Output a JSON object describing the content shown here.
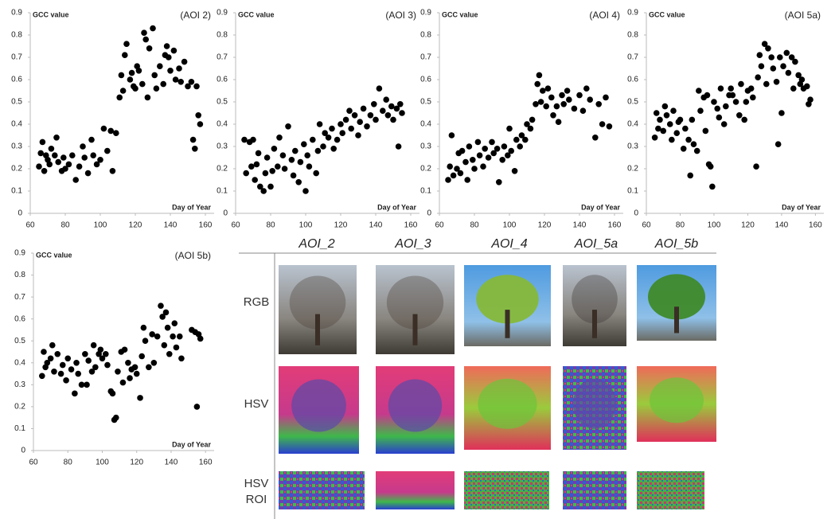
{
  "chart_data": [
    {
      "type": "scatter",
      "title": "(AOI 2)",
      "y_label": "GCC value",
      "x_label": "Day of Year",
      "color": "#000000",
      "x": [
        65,
        66,
        67,
        68,
        69,
        70,
        71,
        72,
        74,
        75,
        76,
        78,
        79,
        80,
        82,
        84,
        86,
        88,
        90,
        91,
        93,
        95,
        96,
        98,
        100,
        102,
        104,
        106,
        107,
        109,
        111,
        112,
        113,
        114,
        115,
        117,
        118,
        119,
        120,
        121,
        122,
        124,
        125,
        126,
        127,
        128,
        130,
        131,
        132,
        134,
        136,
        137,
        138,
        139,
        140,
        142,
        143,
        145,
        146,
        148,
        150,
        152,
        153,
        154,
        155,
        156,
        157
      ],
      "values": [
        0.21,
        0.27,
        0.32,
        0.19,
        0.26,
        0.24,
        0.22,
        0.29,
        0.26,
        0.34,
        0.23,
        0.19,
        0.25,
        0.2,
        0.22,
        0.26,
        0.15,
        0.21,
        0.3,
        0.25,
        0.18,
        0.33,
        0.26,
        0.22,
        0.24,
        0.38,
        0.28,
        0.37,
        0.19,
        0.36,
        0.52,
        0.62,
        0.55,
        0.71,
        0.76,
        0.6,
        0.63,
        0.57,
        0.56,
        0.66,
        0.64,
        0.58,
        0.81,
        0.78,
        0.52,
        0.74,
        0.83,
        0.62,
        0.56,
        0.66,
        0.58,
        0.71,
        0.75,
        0.7,
        0.64,
        0.73,
        0.6,
        0.65,
        0.59,
        0.68,
        0.57,
        0.59,
        0.33,
        0.29,
        0.57,
        0.44,
        0.4
      ],
      "xlim": [
        60,
        165
      ],
      "ylim": [
        0,
        0.9
      ],
      "xticks": [
        60,
        80,
        100,
        120,
        140,
        160
      ],
      "yticks": [
        0,
        0.1,
        0.2,
        0.3,
        0.4,
        0.5,
        0.6,
        0.7,
        0.8,
        0.9
      ]
    },
    {
      "type": "scatter",
      "title": "(AOI 3)",
      "y_label": "GCC value",
      "x_label": "Day of Year",
      "color": "#000000",
      "x": [
        65,
        66,
        68,
        69,
        70,
        71,
        72,
        73,
        74,
        76,
        77,
        78,
        80,
        81,
        82,
        84,
        85,
        87,
        88,
        90,
        92,
        93,
        94,
        96,
        97,
        99,
        100,
        101,
        102,
        104,
        106,
        107,
        108,
        110,
        111,
        113,
        115,
        116,
        118,
        120,
        121,
        123,
        125,
        126,
        128,
        130,
        131,
        133,
        135,
        137,
        139,
        140,
        142,
        144,
        146,
        147,
        149,
        150,
        152,
        153,
        154,
        155
      ],
      "values": [
        0.33,
        0.18,
        0.32,
        0.21,
        0.33,
        0.15,
        0.22,
        0.27,
        0.12,
        0.1,
        0.18,
        0.25,
        0.12,
        0.19,
        0.29,
        0.21,
        0.34,
        0.26,
        0.2,
        0.39,
        0.24,
        0.17,
        0.28,
        0.14,
        0.23,
        0.31,
        0.1,
        0.26,
        0.21,
        0.33,
        0.18,
        0.28,
        0.4,
        0.3,
        0.36,
        0.34,
        0.38,
        0.29,
        0.33,
        0.4,
        0.36,
        0.42,
        0.46,
        0.38,
        0.44,
        0.35,
        0.41,
        0.47,
        0.39,
        0.44,
        0.49,
        0.42,
        0.56,
        0.46,
        0.51,
        0.44,
        0.48,
        0.42,
        0.47,
        0.3,
        0.49,
        0.45
      ],
      "xlim": [
        60,
        165
      ],
      "ylim": [
        0,
        0.9
      ],
      "xticks": [
        60,
        80,
        100,
        120,
        140,
        160
      ],
      "yticks": [
        0,
        0.1,
        0.2,
        0.3,
        0.4,
        0.5,
        0.6,
        0.7,
        0.8,
        0.9
      ]
    },
    {
      "type": "scatter",
      "title": "(AOI 4)",
      "y_label": "GCC value",
      "x_label": "Day of Year",
      "color": "#000000",
      "x": [
        65,
        66,
        67,
        68,
        70,
        71,
        72,
        73,
        75,
        76,
        77,
        79,
        80,
        82,
        83,
        85,
        86,
        88,
        90,
        91,
        93,
        94,
        96,
        97,
        99,
        100,
        101,
        103,
        104,
        106,
        107,
        109,
        110,
        112,
        113,
        115,
        116,
        117,
        118,
        119,
        121,
        122,
        124,
        125,
        127,
        128,
        130,
        131,
        133,
        134,
        137,
        140,
        142,
        144,
        146,
        149,
        151,
        153,
        155,
        157
      ],
      "values": [
        0.15,
        0.21,
        0.35,
        0.17,
        0.2,
        0.27,
        0.18,
        0.28,
        0.23,
        0.15,
        0.3,
        0.24,
        0.2,
        0.32,
        0.26,
        0.21,
        0.29,
        0.25,
        0.32,
        0.27,
        0.29,
        0.14,
        0.24,
        0.3,
        0.26,
        0.38,
        0.28,
        0.19,
        0.33,
        0.3,
        0.35,
        0.33,
        0.4,
        0.38,
        0.42,
        0.49,
        0.58,
        0.62,
        0.5,
        0.55,
        0.48,
        0.56,
        0.52,
        0.44,
        0.48,
        0.41,
        0.53,
        0.49,
        0.55,
        0.51,
        0.47,
        0.53,
        0.46,
        0.56,
        0.51,
        0.34,
        0.49,
        0.4,
        0.52,
        0.39
      ],
      "xlim": [
        60,
        165
      ],
      "ylim": [
        0,
        0.9
      ],
      "xticks": [
        60,
        80,
        100,
        120,
        140,
        160
      ],
      "yticks": [
        0,
        0.1,
        0.2,
        0.3,
        0.4,
        0.5,
        0.6,
        0.7,
        0.8,
        0.9
      ]
    },
    {
      "type": "scatter",
      "title": "(AOI 5a)",
      "y_label": "GCC value",
      "x_label": "Day of Year",
      "color": "#000000",
      "x": [
        65,
        66,
        67,
        68,
        70,
        71,
        72,
        74,
        75,
        76,
        78,
        79,
        80,
        82,
        83,
        85,
        86,
        87,
        88,
        90,
        91,
        92,
        94,
        95,
        96,
        97,
        98,
        99,
        100,
        102,
        103,
        104,
        106,
        107,
        109,
        110,
        111,
        113,
        115,
        116,
        118,
        119,
        120,
        122,
        123,
        125,
        126,
        127,
        128,
        130,
        131,
        132,
        134,
        135,
        137,
        138,
        139,
        140,
        141,
        143,
        144,
        146,
        147,
        148,
        150,
        151,
        152,
        153,
        155,
        156,
        157
      ],
      "values": [
        0.34,
        0.45,
        0.38,
        0.42,
        0.37,
        0.48,
        0.44,
        0.4,
        0.33,
        0.46,
        0.36,
        0.41,
        0.42,
        0.29,
        0.38,
        0.33,
        0.17,
        0.42,
        0.31,
        0.28,
        0.55,
        0.46,
        0.52,
        0.37,
        0.53,
        0.22,
        0.21,
        0.12,
        0.5,
        0.47,
        0.43,
        0.56,
        0.4,
        0.48,
        0.53,
        0.56,
        0.53,
        0.5,
        0.44,
        0.58,
        0.42,
        0.5,
        0.55,
        0.56,
        0.52,
        0.21,
        0.61,
        0.71,
        0.66,
        0.76,
        0.58,
        0.74,
        0.7,
        0.65,
        0.59,
        0.31,
        0.7,
        0.45,
        0.66,
        0.72,
        0.63,
        0.7,
        0.56,
        0.68,
        0.62,
        0.58,
        0.6,
        0.56,
        0.57,
        0.49,
        0.51
      ],
      "xlim": [
        60,
        165
      ],
      "ylim": [
        0,
        0.9
      ],
      "xticks": [
        60,
        80,
        100,
        120,
        140,
        160
      ],
      "yticks": [
        0,
        0.1,
        0.2,
        0.3,
        0.4,
        0.5,
        0.6,
        0.7,
        0.8,
        0.9
      ]
    },
    {
      "type": "scatter",
      "title": "(AOI 5b)",
      "y_label": "GCC value",
      "x_label": "Day of Year",
      "color": "#000000",
      "x": [
        65,
        66,
        67,
        68,
        70,
        71,
        72,
        74,
        76,
        77,
        79,
        80,
        82,
        84,
        85,
        86,
        88,
        90,
        91,
        92,
        94,
        95,
        96,
        98,
        99,
        100,
        102,
        103,
        105,
        106,
        107,
        108,
        109,
        111,
        112,
        113,
        115,
        116,
        117,
        119,
        120,
        122,
        123,
        124,
        125,
        127,
        129,
        130,
        132,
        134,
        135,
        136,
        137,
        138,
        139,
        141,
        142,
        143,
        145,
        146,
        155,
        152,
        154,
        156,
        157
      ],
      "values": [
        0.34,
        0.45,
        0.38,
        0.4,
        0.42,
        0.48,
        0.36,
        0.44,
        0.35,
        0.39,
        0.32,
        0.42,
        0.37,
        0.26,
        0.4,
        0.35,
        0.3,
        0.44,
        0.3,
        0.41,
        0.36,
        0.48,
        0.38,
        0.44,
        0.46,
        0.42,
        0.44,
        0.39,
        0.27,
        0.26,
        0.14,
        0.15,
        0.36,
        0.45,
        0.31,
        0.46,
        0.4,
        0.33,
        0.37,
        0.38,
        0.35,
        0.24,
        0.43,
        0.56,
        0.5,
        0.38,
        0.53,
        0.4,
        0.52,
        0.66,
        0.61,
        0.48,
        0.63,
        0.56,
        0.44,
        0.52,
        0.58,
        0.47,
        0.52,
        0.42,
        0.2,
        0.55,
        0.54,
        0.53,
        0.51
      ],
      "xlim": [
        60,
        165
      ],
      "ylim": [
        0,
        0.9
      ],
      "xticks": [
        60,
        80,
        100,
        120,
        140,
        160
      ],
      "yticks": [
        0,
        0.1,
        0.2,
        0.3,
        0.4,
        0.5,
        0.6,
        0.7,
        0.8,
        0.9
      ]
    }
  ],
  "image_grid": {
    "columns": [
      "AOI_2",
      "AOI_3",
      "AOI_4",
      "AOI_5a",
      "AOI_5b"
    ],
    "rows": [
      "RGB",
      "HSV",
      "HSV ROI"
    ]
  }
}
